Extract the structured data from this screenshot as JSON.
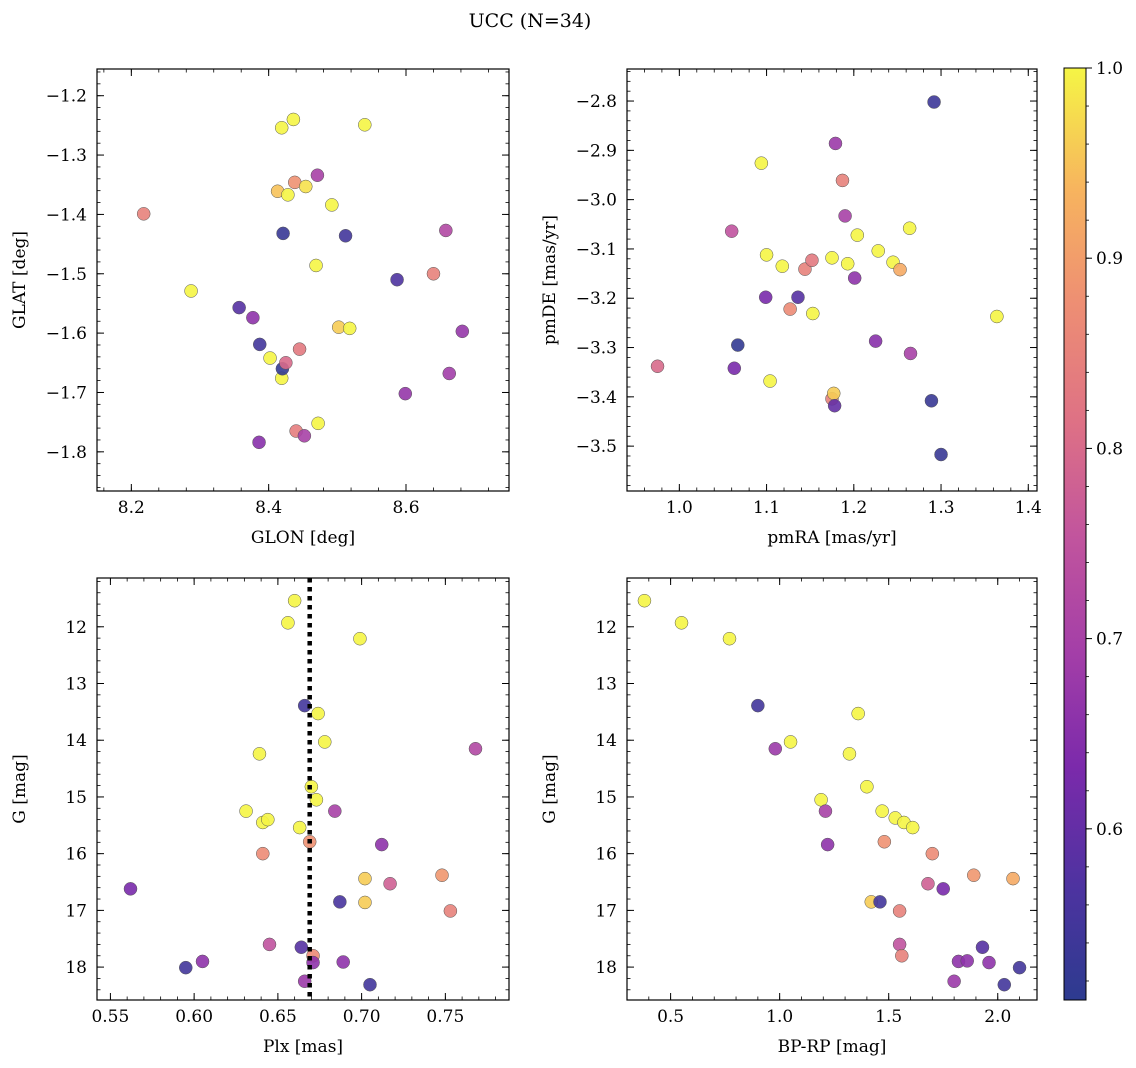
{
  "figure": {
    "title": "UCC (N=34)"
  },
  "colorbar": {
    "range": [
      0.51,
      1.0
    ],
    "ticks": [
      0.6,
      0.7,
      0.8,
      0.9,
      1.0
    ],
    "tick_labels": [
      "0.6",
      "0.7",
      "0.8",
      "0.9",
      "1.0"
    ],
    "colormap": "plasma"
  },
  "chart_data": [
    {
      "type": "scatter",
      "id": "glon-glat",
      "xlabel": "GLON [deg]",
      "ylabel": "GLAT [deg]",
      "xlim": [
        8.15,
        8.75
      ],
      "ylim": [
        -1.866,
        -1.155
      ],
      "y_inverted": false,
      "xticks": [
        8.2,
        8.4,
        8.6
      ],
      "xtick_labels": [
        "8.2",
        "8.4",
        "8.6"
      ],
      "yticks": [
        -1.2,
        -1.3,
        -1.4,
        -1.5,
        -1.6,
        -1.7,
        -1.8
      ],
      "ytick_labels": [
        "−1.2",
        "−1.3",
        "−1.4",
        "−1.5",
        "−1.6",
        "−1.7",
        "−1.8"
      ],
      "grid": false,
      "points": [
        {
          "x": 8.218,
          "y": -1.399,
          "c": 0.85
        },
        {
          "x": 8.287,
          "y": -1.529,
          "c": 1.0
        },
        {
          "x": 8.357,
          "y": -1.557,
          "c": 0.58
        },
        {
          "x": 8.377,
          "y": -1.574,
          "c": 0.66
        },
        {
          "x": 8.387,
          "y": -1.619,
          "c": 0.55
        },
        {
          "x": 8.386,
          "y": -1.784,
          "c": 0.65
        },
        {
          "x": 8.402,
          "y": -1.642,
          "c": 1.0
        },
        {
          "x": 8.413,
          "y": -1.361,
          "c": 0.95
        },
        {
          "x": 8.419,
          "y": -1.254,
          "c": 1.0
        },
        {
          "x": 8.419,
          "y": -1.676,
          "c": 1.0
        },
        {
          "x": 8.42,
          "y": -1.66,
          "c": 0.52
        },
        {
          "x": 8.421,
          "y": -1.432,
          "c": 0.53
        },
        {
          "x": 8.425,
          "y": -1.65,
          "c": 0.8
        },
        {
          "x": 8.428,
          "y": -1.367,
          "c": 1.0
        },
        {
          "x": 8.436,
          "y": -1.24,
          "c": 1.0
        },
        {
          "x": 8.438,
          "y": -1.346,
          "c": 0.88
        },
        {
          "x": 8.44,
          "y": -1.765,
          "c": 0.84
        },
        {
          "x": 8.445,
          "y": -1.627,
          "c": 0.83
        },
        {
          "x": 8.452,
          "y": -1.773,
          "c": 0.7
        },
        {
          "x": 8.454,
          "y": -1.353,
          "c": 0.98
        },
        {
          "x": 8.469,
          "y": -1.486,
          "c": 1.0
        },
        {
          "x": 8.471,
          "y": -1.334,
          "c": 0.7
        },
        {
          "x": 8.472,
          "y": -1.752,
          "c": 1.0
        },
        {
          "x": 8.492,
          "y": -1.384,
          "c": 1.0
        },
        {
          "x": 8.502,
          "y": -1.59,
          "c": 0.96
        },
        {
          "x": 8.512,
          "y": -1.436,
          "c": 0.55
        },
        {
          "x": 8.518,
          "y": -1.592,
          "c": 1.0
        },
        {
          "x": 8.54,
          "y": -1.249,
          "c": 1.0
        },
        {
          "x": 8.587,
          "y": -1.51,
          "c": 0.57
        },
        {
          "x": 8.599,
          "y": -1.702,
          "c": 0.67
        },
        {
          "x": 8.64,
          "y": -1.5,
          "c": 0.85
        },
        {
          "x": 8.658,
          "y": -1.427,
          "c": 0.72
        },
        {
          "x": 8.663,
          "y": -1.668,
          "c": 0.69
        },
        {
          "x": 8.682,
          "y": -1.597,
          "c": 0.67
        }
      ]
    },
    {
      "type": "scatter",
      "id": "pmra-pmde",
      "xlabel": "pmRA [mas/yr]",
      "ylabel": "pmDE [mas/yr]",
      "xlim": [
        0.94,
        1.41
      ],
      "ylim": [
        -3.591,
        -2.735
      ],
      "y_inverted": false,
      "xticks": [
        1.0,
        1.1,
        1.2,
        1.3,
        1.4
      ],
      "xtick_labels": [
        "1.0",
        "1.1",
        "1.2",
        "1.3",
        "1.4"
      ],
      "yticks": [
        -2.8,
        -2.9,
        -3.0,
        -3.1,
        -3.2,
        -3.3,
        -3.4,
        -3.5
      ],
      "ytick_labels": [
        "−2.8",
        "−2.9",
        "−3.0",
        "−3.1",
        "−3.2",
        "−3.3",
        "−3.4",
        "−3.5"
      ],
      "grid": false,
      "points": [
        {
          "x": 0.975,
          "y": -3.338,
          "c": 0.8
        },
        {
          "x": 1.06,
          "y": -3.064,
          "c": 0.75
        },
        {
          "x": 1.063,
          "y": -3.342,
          "c": 0.63
        },
        {
          "x": 1.067,
          "y": -3.295,
          "c": 0.52
        },
        {
          "x": 1.094,
          "y": -2.926,
          "c": 1.0
        },
        {
          "x": 1.099,
          "y": -3.198,
          "c": 0.63
        },
        {
          "x": 1.1,
          "y": -3.112,
          "c": 1.0
        },
        {
          "x": 1.104,
          "y": -3.368,
          "c": 1.0
        },
        {
          "x": 1.118,
          "y": -3.135,
          "c": 1.0
        },
        {
          "x": 1.127,
          "y": -3.222,
          "c": 0.87
        },
        {
          "x": 1.136,
          "y": -3.198,
          "c": 0.58
        },
        {
          "x": 1.144,
          "y": -3.141,
          "c": 0.85
        },
        {
          "x": 1.152,
          "y": -3.123,
          "c": 0.83
        },
        {
          "x": 1.153,
          "y": -3.231,
          "c": 1.0
        },
        {
          "x": 1.175,
          "y": -3.118,
          "c": 1.0
        },
        {
          "x": 1.175,
          "y": -3.404,
          "c": 0.85
        },
        {
          "x": 1.177,
          "y": -3.393,
          "c": 0.96
        },
        {
          "x": 1.178,
          "y": -3.418,
          "c": 0.6
        },
        {
          "x": 1.179,
          "y": -2.886,
          "c": 0.68
        },
        {
          "x": 1.187,
          "y": -2.961,
          "c": 0.85
        },
        {
          "x": 1.19,
          "y": -3.033,
          "c": 0.7
        },
        {
          "x": 1.193,
          "y": -3.13,
          "c": 1.0
        },
        {
          "x": 1.201,
          "y": -3.159,
          "c": 0.66
        },
        {
          "x": 1.204,
          "y": -3.072,
          "c": 1.0
        },
        {
          "x": 1.225,
          "y": -3.287,
          "c": 0.65
        },
        {
          "x": 1.228,
          "y": -3.104,
          "c": 1.0
        },
        {
          "x": 1.245,
          "y": -3.127,
          "c": 1.0
        },
        {
          "x": 1.253,
          "y": -3.142,
          "c": 0.92
        },
        {
          "x": 1.264,
          "y": -3.058,
          "c": 1.0
        },
        {
          "x": 1.265,
          "y": -3.312,
          "c": 0.7
        },
        {
          "x": 1.289,
          "y": -3.408,
          "c": 0.53
        },
        {
          "x": 1.292,
          "y": -2.802,
          "c": 0.54
        },
        {
          "x": 1.3,
          "y": -3.517,
          "c": 0.53
        },
        {
          "x": 1.364,
          "y": -3.237,
          "c": 1.0
        }
      ]
    },
    {
      "type": "scatter",
      "id": "plx-g",
      "xlabel": "Plx [mas]",
      "ylabel": "G [mag]",
      "xlim": [
        0.542,
        0.788
      ],
      "ylim": [
        18.58,
        11.14
      ],
      "y_inverted": true,
      "xticks": [
        0.55,
        0.6,
        0.65,
        0.7,
        0.75
      ],
      "xtick_labels": [
        "0.55",
        "0.60",
        "0.65",
        "0.70",
        "0.75"
      ],
      "yticks": [
        12,
        13,
        14,
        15,
        16,
        17,
        18
      ],
      "ytick_labels": [
        "12",
        "13",
        "14",
        "15",
        "16",
        "17",
        "18"
      ],
      "grid": false,
      "reference_line": {
        "x": 0.669,
        "style": "dotted",
        "color": "#000000"
      },
      "points": [
        {
          "x": 0.562,
          "y": 16.62,
          "c": 0.63
        },
        {
          "x": 0.595,
          "y": 18.01,
          "c": 0.55
        },
        {
          "x": 0.605,
          "y": 17.9,
          "c": 0.66
        },
        {
          "x": 0.631,
          "y": 15.25,
          "c": 1.0
        },
        {
          "x": 0.639,
          "y": 14.24,
          "c": 1.0
        },
        {
          "x": 0.641,
          "y": 15.45,
          "c": 1.0
        },
        {
          "x": 0.641,
          "y": 16.0,
          "c": 0.87
        },
        {
          "x": 0.644,
          "y": 15.4,
          "c": 1.0
        },
        {
          "x": 0.645,
          "y": 17.6,
          "c": 0.75
        },
        {
          "x": 0.656,
          "y": 11.93,
          "c": 1.0
        },
        {
          "x": 0.66,
          "y": 11.54,
          "c": 1.0
        },
        {
          "x": 0.663,
          "y": 15.54,
          "c": 1.0
        },
        {
          "x": 0.664,
          "y": 17.65,
          "c": 0.58
        },
        {
          "x": 0.666,
          "y": 13.39,
          "c": 0.55
        },
        {
          "x": 0.666,
          "y": 18.25,
          "c": 0.68
        },
        {
          "x": 0.669,
          "y": 15.79,
          "c": 0.88
        },
        {
          "x": 0.67,
          "y": 14.82,
          "c": 1.0
        },
        {
          "x": 0.671,
          "y": 17.8,
          "c": 0.87
        },
        {
          "x": 0.671,
          "y": 17.92,
          "c": 0.66
        },
        {
          "x": 0.673,
          "y": 15.05,
          "c": 1.0
        },
        {
          "x": 0.674,
          "y": 13.53,
          "c": 1.0
        },
        {
          "x": 0.678,
          "y": 14.03,
          "c": 1.0
        },
        {
          "x": 0.684,
          "y": 15.25,
          "c": 0.7
        },
        {
          "x": 0.687,
          "y": 16.85,
          "c": 0.56
        },
        {
          "x": 0.689,
          "y": 17.91,
          "c": 0.66
        },
        {
          "x": 0.699,
          "y": 12.21,
          "c": 1.0
        },
        {
          "x": 0.702,
          "y": 16.44,
          "c": 0.96
        },
        {
          "x": 0.702,
          "y": 16.86,
          "c": 0.96
        },
        {
          "x": 0.705,
          "y": 18.31,
          "c": 0.55
        },
        {
          "x": 0.712,
          "y": 15.84,
          "c": 0.66
        },
        {
          "x": 0.717,
          "y": 16.53,
          "c": 0.78
        },
        {
          "x": 0.748,
          "y": 16.38,
          "c": 0.89
        },
        {
          "x": 0.753,
          "y": 17.01,
          "c": 0.85
        },
        {
          "x": 0.768,
          "y": 14.15,
          "c": 0.72
        }
      ]
    },
    {
      "type": "scatter",
      "id": "bprp-g",
      "xlabel": "BP-RP [mag]",
      "ylabel": "G [mag]",
      "xlim": [
        0.3,
        2.18
      ],
      "ylim": [
        18.58,
        11.14
      ],
      "y_inverted": true,
      "xticks": [
        0.5,
        1.0,
        1.5,
        2.0
      ],
      "xtick_labels": [
        "0.5",
        "1.0",
        "1.5",
        "2.0"
      ],
      "yticks": [
        12,
        13,
        14,
        15,
        16,
        17,
        18
      ],
      "ytick_labels": [
        "12",
        "13",
        "14",
        "15",
        "16",
        "17",
        "18"
      ],
      "grid": false,
      "points": [
        {
          "x": 0.38,
          "y": 11.54,
          "c": 1.0
        },
        {
          "x": 0.55,
          "y": 11.93,
          "c": 1.0
        },
        {
          "x": 0.77,
          "y": 12.21,
          "c": 1.0
        },
        {
          "x": 0.9,
          "y": 13.39,
          "c": 0.55
        },
        {
          "x": 0.98,
          "y": 14.15,
          "c": 0.68
        },
        {
          "x": 1.05,
          "y": 14.03,
          "c": 1.0
        },
        {
          "x": 1.19,
          "y": 15.05,
          "c": 1.0
        },
        {
          "x": 1.21,
          "y": 15.25,
          "c": 0.7
        },
        {
          "x": 1.22,
          "y": 15.84,
          "c": 0.66
        },
        {
          "x": 1.32,
          "y": 14.24,
          "c": 1.0
        },
        {
          "x": 1.36,
          "y": 13.53,
          "c": 1.0
        },
        {
          "x": 1.4,
          "y": 14.82,
          "c": 1.0
        },
        {
          "x": 1.42,
          "y": 16.85,
          "c": 0.96
        },
        {
          "x": 1.46,
          "y": 16.85,
          "c": 0.55
        },
        {
          "x": 1.47,
          "y": 15.25,
          "c": 1.0
        },
        {
          "x": 1.48,
          "y": 15.79,
          "c": 0.88
        },
        {
          "x": 1.53,
          "y": 15.37,
          "c": 1.0
        },
        {
          "x": 1.55,
          "y": 17.01,
          "c": 0.85
        },
        {
          "x": 1.55,
          "y": 17.6,
          "c": 0.75
        },
        {
          "x": 1.56,
          "y": 17.8,
          "c": 0.85
        },
        {
          "x": 1.57,
          "y": 15.45,
          "c": 1.0
        },
        {
          "x": 1.61,
          "y": 15.54,
          "c": 1.0
        },
        {
          "x": 1.68,
          "y": 16.53,
          "c": 0.78
        },
        {
          "x": 1.7,
          "y": 16.0,
          "c": 0.87
        },
        {
          "x": 1.75,
          "y": 16.62,
          "c": 0.63
        },
        {
          "x": 1.8,
          "y": 18.25,
          "c": 0.68
        },
        {
          "x": 1.82,
          "y": 17.9,
          "c": 0.66
        },
        {
          "x": 1.86,
          "y": 17.89,
          "c": 0.66
        },
        {
          "x": 1.89,
          "y": 16.38,
          "c": 0.89
        },
        {
          "x": 1.93,
          "y": 17.65,
          "c": 0.58
        },
        {
          "x": 1.96,
          "y": 17.92,
          "c": 0.66
        },
        {
          "x": 2.03,
          "y": 18.31,
          "c": 0.55
        },
        {
          "x": 2.07,
          "y": 16.44,
          "c": 0.92
        },
        {
          "x": 2.1,
          "y": 18.01,
          "c": 0.55
        }
      ]
    }
  ]
}
